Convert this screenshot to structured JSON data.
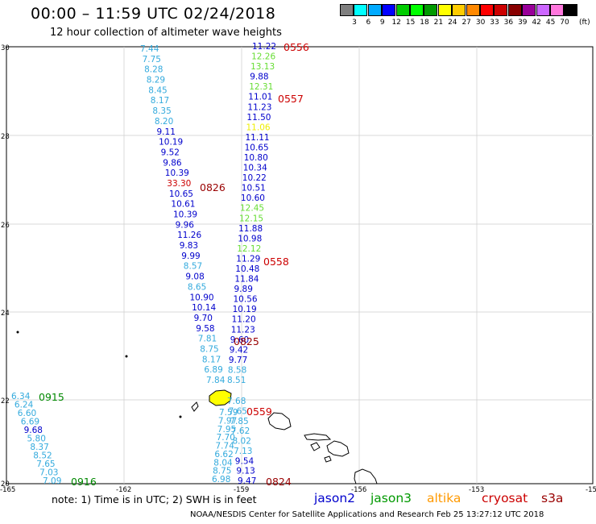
{
  "header": {
    "title": "00:00 – 11:59 UTC 02/24/2018",
    "subtitle": "12 hour collection of altimeter wave heights"
  },
  "legend": {
    "unit": "(ft)",
    "items": [
      {
        "label": "3",
        "color": "#7f7f7f"
      },
      {
        "label": "6",
        "color": "#00ffff"
      },
      {
        "label": "9",
        "color": "#00aaff"
      },
      {
        "label": "12",
        "color": "#0000ff"
      },
      {
        "label": "15",
        "color": "#00cc00"
      },
      {
        "label": "18",
        "color": "#00ff00"
      },
      {
        "label": "21",
        "color": "#009900"
      },
      {
        "label": "24",
        "color": "#ffff00"
      },
      {
        "label": "27",
        "color": "#ffcc00"
      },
      {
        "label": "30",
        "color": "#ff8800"
      },
      {
        "label": "33",
        "color": "#ff0000"
      },
      {
        "label": "36",
        "color": "#cc0000"
      },
      {
        "label": "39",
        "color": "#880000"
      },
      {
        "label": "42",
        "color": "#990099"
      },
      {
        "label": "45",
        "color": "#cc66ff"
      },
      {
        "label": "70",
        "color": "#ff77dd"
      },
      {
        "label": "",
        "color": "#000000"
      }
    ]
  },
  "map": {
    "lat_ticks": [
      "30",
      "28",
      "26",
      "24",
      "22",
      "20"
    ],
    "lon_ticks": [
      "-165",
      "-162",
      "-159",
      "-156",
      "-153",
      "-15"
    ],
    "colors": {
      "c1": "#33aadd",
      "c2": "#0000cc",
      "c3": "#66dd33",
      "c4": "#eeee00",
      "c5": "#008800",
      "c6": "#cc0000",
      "c7": "#990000",
      "c8": "#00bbdd"
    },
    "tracks": [
      {
        "id": "track-0826-0825",
        "points": [
          {
            "t": "7.44",
            "c": "c1"
          },
          {
            "t": "7.75",
            "c": "c1"
          },
          {
            "t": "8.28",
            "c": "c1"
          },
          {
            "t": "8.29",
            "c": "c1"
          },
          {
            "t": "8.45",
            "c": "c1"
          },
          {
            "t": "8.17",
            "c": "c1"
          },
          {
            "t": "8.35",
            "c": "c1"
          },
          {
            "t": "8.20",
            "c": "c1"
          },
          {
            "t": "9.11",
            "c": "c2"
          },
          {
            "t": "10.19",
            "c": "c2"
          },
          {
            "t": "9.52",
            "c": "c2"
          },
          {
            "t": "9.86",
            "c": "c2"
          },
          {
            "t": "10.39",
            "c": "c2"
          },
          {
            "t": "33.30",
            "c": "c6"
          },
          {
            "t": "10.65",
            "c": "c2"
          },
          {
            "t": "10.61",
            "c": "c2"
          },
          {
            "t": "10.39",
            "c": "c2"
          },
          {
            "t": "9.96",
            "c": "c2"
          },
          {
            "t": "11.26",
            "c": "c2"
          },
          {
            "t": "9.83",
            "c": "c2"
          },
          {
            "t": "9.99",
            "c": "c2"
          },
          {
            "t": "8.57",
            "c": "c1"
          },
          {
            "t": "9.08",
            "c": "c2"
          },
          {
            "t": "8.65",
            "c": "c1"
          },
          {
            "t": "10.90",
            "c": "c2"
          },
          {
            "t": "10.14",
            "c": "c2"
          },
          {
            "t": "9.70",
            "c": "c2"
          },
          {
            "t": "9.58",
            "c": "c2"
          },
          {
            "t": "7.81",
            "c": "c1"
          },
          {
            "t": "8.75",
            "c": "c1"
          },
          {
            "t": "8.17",
            "c": "c1"
          },
          {
            "t": "6.89",
            "c": "c1"
          },
          {
            "t": "7.84",
            "c": "c1"
          }
        ]
      },
      {
        "id": "track-0559-0824",
        "points": [
          {
            "t": "7.59",
            "c": "c1"
          },
          {
            "t": "7.97",
            "c": "c1"
          },
          {
            "t": "7.95",
            "c": "c1"
          },
          {
            "t": "7.70",
            "c": "c1"
          },
          {
            "t": "7.74",
            "c": "c1"
          },
          {
            "t": "6.62",
            "c": "c1"
          },
          {
            "t": "8.04",
            "c": "c1"
          },
          {
            "t": "8.75",
            "c": "c1"
          },
          {
            "t": "6.98",
            "c": "c1"
          }
        ]
      },
      {
        "id": "track-0556-0558",
        "points": [
          {
            "t": "11.22",
            "c": "c2"
          },
          {
            "t": "12.26",
            "c": "c3"
          },
          {
            "t": "13.13",
            "c": "c3"
          },
          {
            "t": "9.88",
            "c": "c2"
          },
          {
            "t": "12.31",
            "c": "c3"
          },
          {
            "t": "11.01",
            "c": "c2"
          },
          {
            "t": "11.23",
            "c": "c2"
          },
          {
            "t": "11.50",
            "c": "c2"
          },
          {
            "t": "11.06",
            "c": "c4"
          },
          {
            "t": "11.11",
            "c": "c2"
          },
          {
            "t": "10.65",
            "c": "c2"
          },
          {
            "t": "10.80",
            "c": "c2"
          },
          {
            "t": "10.34",
            "c": "c2"
          },
          {
            "t": "10.22",
            "c": "c2"
          },
          {
            "t": "10.51",
            "c": "c2"
          },
          {
            "t": "10.60",
            "c": "c2"
          },
          {
            "t": "12.45",
            "c": "c3"
          },
          {
            "t": "12.15",
            "c": "c3"
          },
          {
            "t": "11.88",
            "c": "c2"
          },
          {
            "t": "10.98",
            "c": "c2"
          },
          {
            "t": "12.12",
            "c": "c3"
          },
          {
            "t": "11.29",
            "c": "c2"
          },
          {
            "t": "10.48",
            "c": "c2"
          },
          {
            "t": "11.84",
            "c": "c2"
          },
          {
            "t": "9.89",
            "c": "c2"
          },
          {
            "t": "10.56",
            "c": "c2"
          },
          {
            "t": "10.19",
            "c": "c2"
          },
          {
            "t": "11.20",
            "c": "c2"
          },
          {
            "t": "11.23",
            "c": "c2"
          },
          {
            "t": "9.60",
            "c": "c2"
          },
          {
            "t": "9.42",
            "c": "c2"
          },
          {
            "t": "9.77",
            "c": "c2"
          },
          {
            "t": "8.58",
            "c": "c1"
          },
          {
            "t": "8.51",
            "c": "c1"
          }
        ]
      },
      {
        "id": "track-0559-south",
        "points": [
          {
            "t": "7.68",
            "c": "c1"
          },
          {
            "t": "7.65",
            "c": "c1"
          },
          {
            "t": "7.85",
            "c": "c1"
          },
          {
            "t": "7.62",
            "c": "c1"
          },
          {
            "t": "8.02",
            "c": "c1"
          },
          {
            "t": "7.13",
            "c": "c1"
          },
          {
            "t": "9.54",
            "c": "c2"
          },
          {
            "t": "9.13",
            "c": "c2"
          },
          {
            "t": "9.47",
            "c": "c2"
          }
        ]
      },
      {
        "id": "track-0915-0916",
        "points": [
          {
            "t": "6.34",
            "c": "c1"
          },
          {
            "t": "6.24",
            "c": "c1"
          },
          {
            "t": "6.60",
            "c": "c1"
          },
          {
            "t": "6.69",
            "c": "c1"
          },
          {
            "t": "9.68",
            "c": "c2"
          },
          {
            "t": "5.80",
            "c": "c1"
          },
          {
            "t": "8.37",
            "c": "c1"
          },
          {
            "t": "8.52",
            "c": "c1"
          },
          {
            "t": "7.65",
            "c": "c1"
          },
          {
            "t": "7.03",
            "c": "c1"
          },
          {
            "t": "7.09",
            "c": "c1"
          }
        ]
      }
    ],
    "pass_labels": [
      {
        "t": "0556",
        "c": "c6"
      },
      {
        "t": "0557",
        "c": "c6"
      },
      {
        "t": "0826",
        "c": "c7"
      },
      {
        "t": "0558",
        "c": "c6"
      },
      {
        "t": "0825",
        "c": "c7"
      },
      {
        "t": "0915",
        "c": "c5"
      },
      {
        "t": "0559",
        "c": "c6"
      },
      {
        "t": "0916",
        "c": "c5"
      },
      {
        "t": "0824",
        "c": "c7"
      }
    ]
  },
  "footer": {
    "note": "note:  1) Time is in UTC;  2) SWH is in feet",
    "credit": "NOAA/NESDIS Center for Satellite Applications and Research     Feb 25 13:27:12 UTC 2018",
    "satellites": [
      {
        "name": "jason2",
        "color": "#0000cc"
      },
      {
        "name": "jason3",
        "color": "#009900"
      },
      {
        "name": "altika",
        "color": "#ff9900"
      },
      {
        "name": "cryosat",
        "color": "#cc0000"
      },
      {
        "name": "s3a",
        "color": "#990000"
      }
    ]
  }
}
